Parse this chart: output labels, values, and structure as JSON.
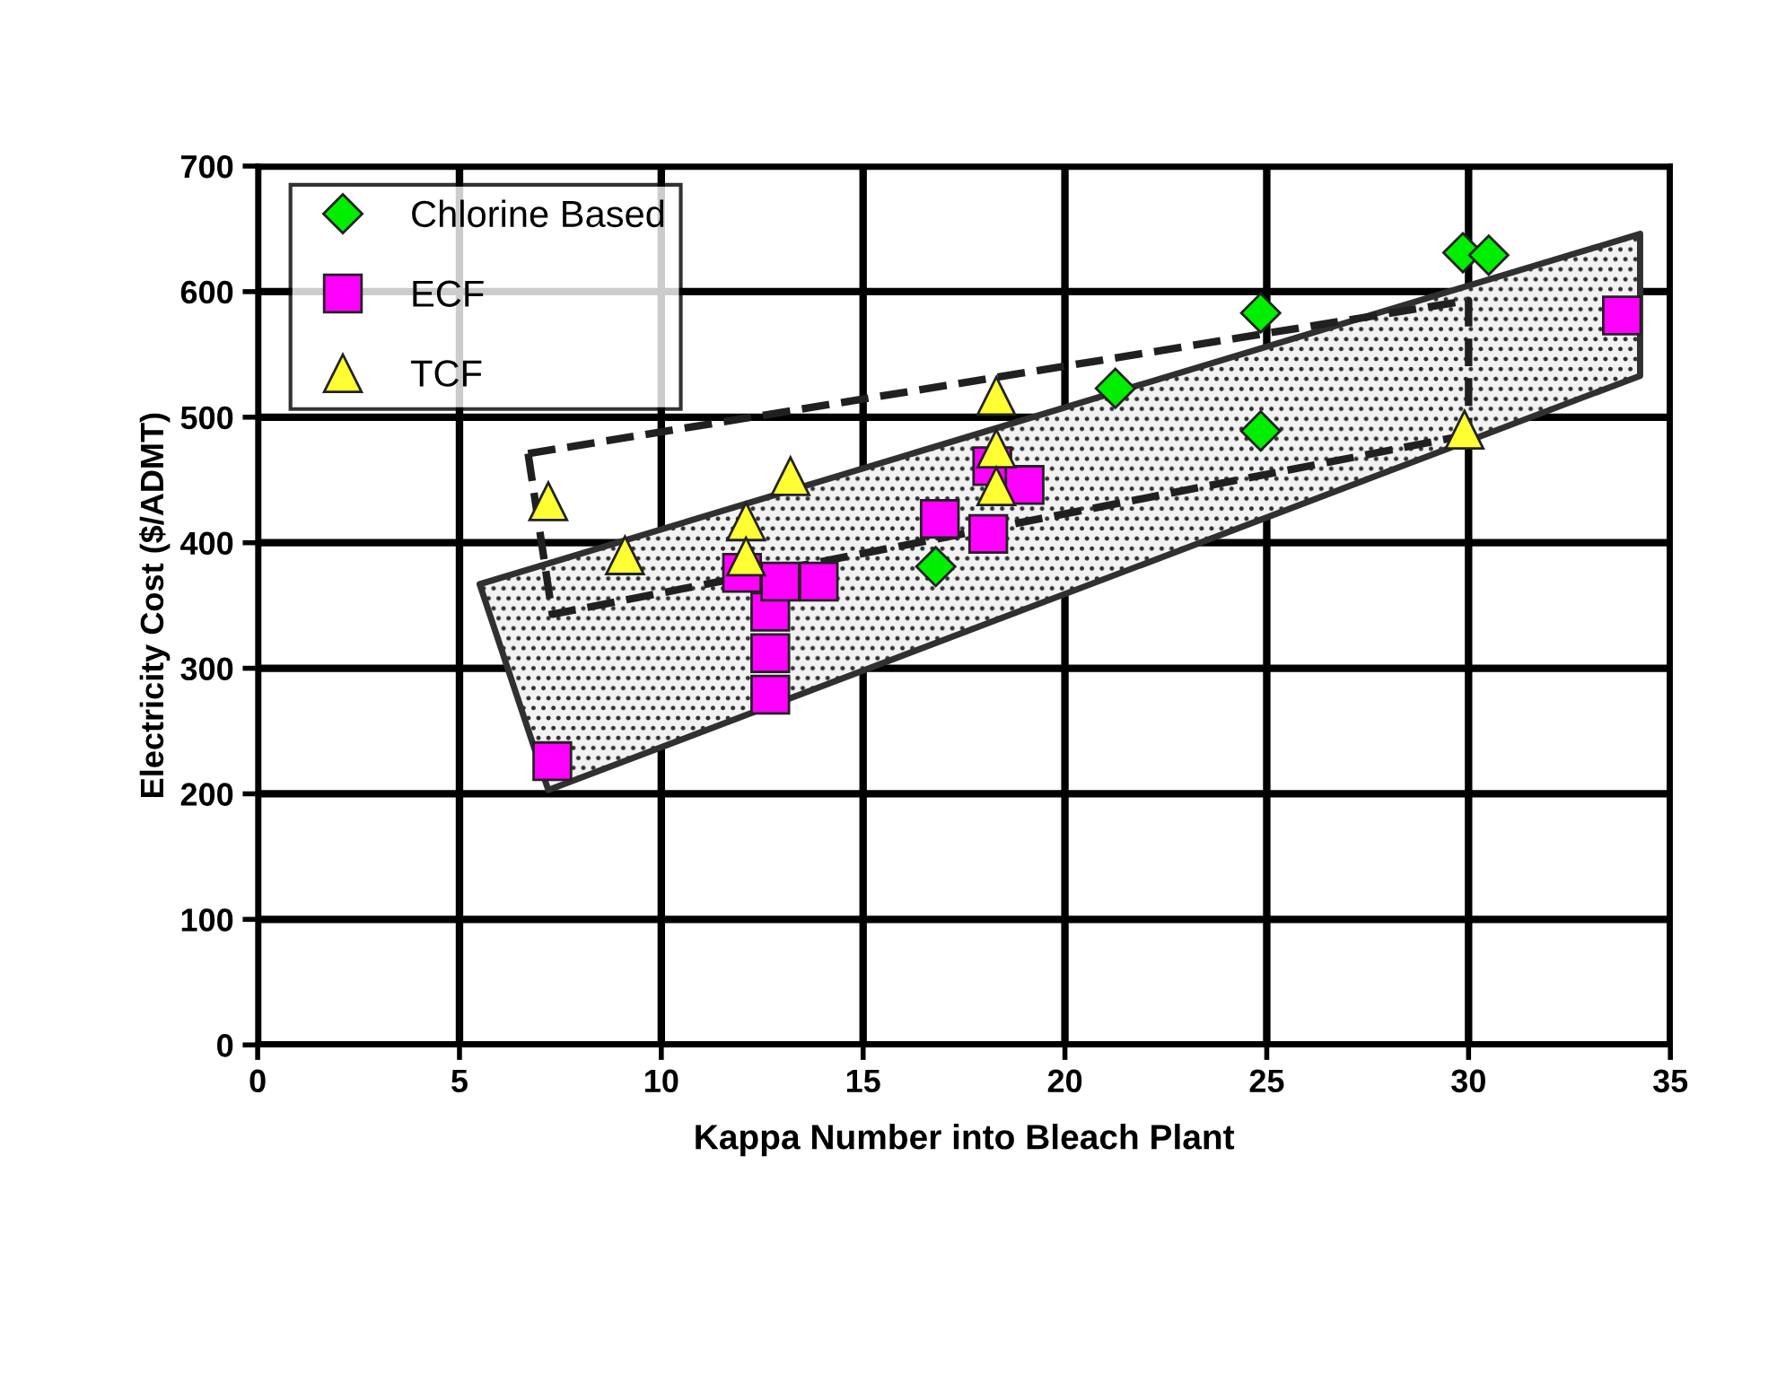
{
  "chart_data": {
    "type": "scatter",
    "xlabel": "Kappa Number into Bleach Plant",
    "ylabel": "Electricity Cost ($/ADMT)",
    "xlim": [
      0,
      35
    ],
    "xticks": [
      0,
      5,
      10,
      15,
      20,
      25,
      30,
      35
    ],
    "ylim": [
      0,
      700
    ],
    "yticks": [
      0,
      100,
      200,
      300,
      400,
      500,
      600,
      700
    ],
    "grid": true,
    "legend": "top left",
    "series": [
      {
        "type": "area",
        "color": "#303030",
        "x": [
          5.5,
          7.2,
          34.25,
          34.25,
          5.5
        ],
        "values": [
          367,
          203,
          533,
          646,
          367
        ]
      },
      {
        "type": "line",
        "color": "#202020",
        "line_style": "dashed",
        "x": [
          6.7,
          30,
          30
        ],
        "values": [
          471,
          593,
          486
        ]
      },
      {
        "type": "line",
        "color": "#202020",
        "line_style": "dashed",
        "x": [
          6.7,
          7.3,
          30
        ],
        "values": [
          471,
          343,
          486
        ]
      },
      {
        "name": "Chlorine Based",
        "color": "#00ee00",
        "marker": "diamond",
        "x": [
          16.8,
          21.25,
          24.85,
          24.85,
          29.86,
          30.5
        ],
        "values": [
          381,
          523,
          583,
          489,
          631,
          629
        ]
      },
      {
        "name": "ECF",
        "color": "#ff00ff",
        "marker": "square",
        "x": [
          7.3,
          12.7,
          12.7,
          12.7,
          12.0,
          12.95,
          13.9,
          16.9,
          18.1,
          18.2,
          19.0,
          33.8
        ],
        "values": [
          226,
          345,
          312,
          279,
          376,
          369,
          369,
          419,
          407,
          461,
          446,
          581
        ]
      },
      {
        "name": "TCF",
        "color": "#ffff33",
        "marker": "triangle",
        "x": [
          7.2,
          9.1,
          12.1,
          12.1,
          13.2,
          18.3,
          18.3,
          18.3,
          29.9
        ],
        "values": [
          433,
          390,
          417,
          389,
          453,
          517,
          475,
          445,
          490
        ]
      }
    ]
  }
}
